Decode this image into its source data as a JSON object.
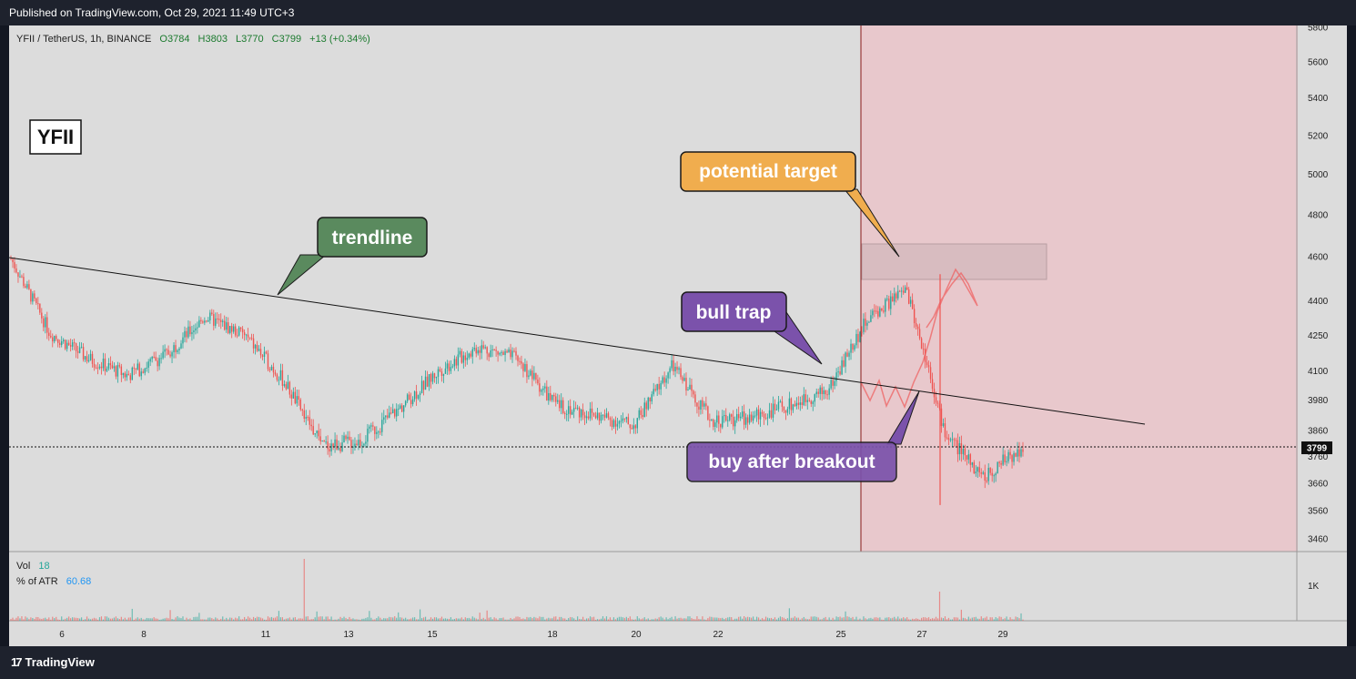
{
  "header": {
    "published_text": "Published on TradingView.com, Oct 29, 2021 11:49 UTC+3"
  },
  "footer": {
    "brand": "TradingView",
    "logo_icon": "tradingview-logo-icon"
  },
  "legend": {
    "symbol": "YFII / TetherUS, 1h, BINANCE",
    "open": "O3784",
    "high": "H3803",
    "low": "L3770",
    "close": "C3799",
    "change": "+13 (+0.34%)"
  },
  "ticker_box": "YFII",
  "volume_legend": {
    "vol_label": "Vol",
    "vol_value": "18",
    "atr_label": "% of ATR",
    "atr_value": "60.68"
  },
  "annotations": {
    "trendline": "trendline",
    "potential_target": "potential target",
    "bull_trap": "bull trap",
    "buy_after_breakout": "buy after breakout"
  },
  "colors": {
    "up": "#26a69a",
    "down": "#ef5350",
    "bg": "#dcdcdc",
    "shade": "#e8c8cc",
    "callout_green": "#5a8a5e",
    "callout_orange": "#f0ad4e",
    "callout_purple": "#7b52ab"
  },
  "chart_data": {
    "type": "candlestick",
    "symbol": "YFII / TetherUS",
    "interval": "1h",
    "exchange": "BINANCE",
    "price_axis_ticks": [
      5800,
      5600,
      5400,
      5200,
      5000,
      4800,
      4600,
      4400,
      4250,
      4100,
      3980,
      3860,
      3760,
      3660,
      3560,
      3460
    ],
    "time_axis_ticks": [
      "6",
      "8",
      "11",
      "13",
      "15",
      "18",
      "20",
      "22",
      "25",
      "27",
      "29"
    ],
    "last_price": 3799,
    "volume_axis_ticks": [
      "1K"
    ],
    "path": [
      [
        "Oct 4",
        4590
      ],
      [
        "Oct 5",
        4260
      ],
      [
        "Oct 6",
        4150
      ],
      [
        "Oct 7",
        4080
      ],
      [
        "Oct 8",
        4170
      ],
      [
        "Oct 9",
        4330
      ],
      [
        "Oct 10",
        4250
      ],
      [
        "Oct 11",
        4060
      ],
      [
        "Oct 12",
        3800
      ],
      [
        "Oct 13",
        3820
      ],
      [
        "Oct 14",
        3950
      ],
      [
        "Oct 15",
        4100
      ],
      [
        "Oct 16",
        4200
      ],
      [
        "Oct 17",
        4150
      ],
      [
        "Oct 18",
        3960
      ],
      [
        "Oct 19",
        3920
      ],
      [
        "Oct 20",
        3880
      ],
      [
        "Oct 21",
        4120
      ],
      [
        "Oct 22",
        3900
      ],
      [
        "Oct 23",
        3910
      ],
      [
        "Oct 24",
        3960
      ],
      [
        "Oct 25",
        4020
      ],
      [
        "Oct 26",
        4320
      ],
      [
        "Oct 27",
        4450
      ],
      [
        "Oct 27",
        3850
      ],
      [
        "Oct 28",
        3680
      ],
      [
        "Oct 29",
        3799
      ]
    ],
    "trendline": {
      "from": [
        "Oct 4",
        4600
      ],
      "to": [
        "Oct 30",
        3870
      ]
    },
    "target_zone": {
      "low": 4480,
      "high": 4650
    },
    "shaded_region_start": "Oct 25"
  }
}
